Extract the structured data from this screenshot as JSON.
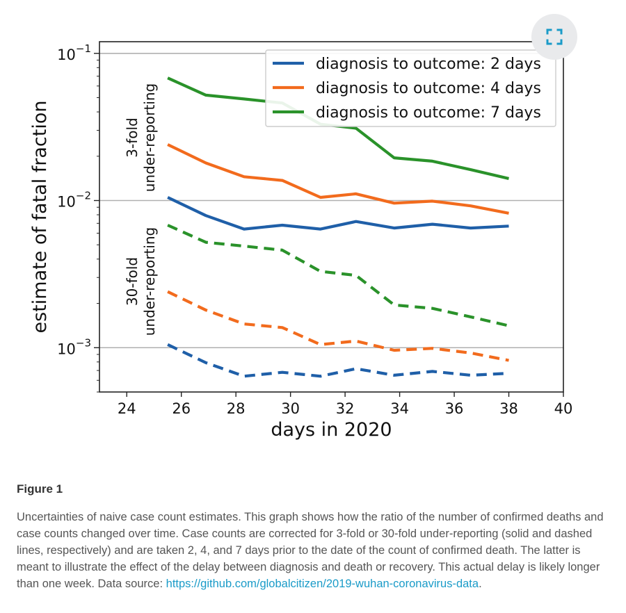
{
  "chart_data": {
    "type": "line",
    "xlabel": "days in 2020",
    "ylabel": "estimate of fatal fraction",
    "xlim": [
      23,
      40
    ],
    "ylim": [
      0.0005,
      0.12
    ],
    "yscale": "log",
    "x_ticks": [
      24,
      26,
      28,
      30,
      32,
      34,
      36,
      38,
      40
    ],
    "y_ticks": [
      {
        "base": "10",
        "exp": "−1",
        "value": 0.1
      },
      {
        "base": "10",
        "exp": "−2",
        "value": 0.01
      },
      {
        "base": "10",
        "exp": "−3",
        "value": 0.001
      }
    ],
    "reference_lines": [
      0.1,
      0.01,
      0.001
    ],
    "annotations": [
      {
        "line1": "3-fold",
        "line2": "under-reporting"
      },
      {
        "line1": "30-fold",
        "line2": "under-reporting"
      }
    ],
    "x": [
      25.5,
      26.9,
      28.3,
      29.7,
      31.1,
      32.4,
      33.8,
      35.2,
      36.6,
      38.0
    ],
    "series": [
      {
        "name": "diagnosis to outcome: 2 days",
        "group": "3-fold",
        "dashed": false,
        "color": "#1f5fa8",
        "values": [
          0.0105,
          0.0079,
          0.0064,
          0.0068,
          0.0064,
          0.0072,
          0.0065,
          0.0069,
          0.0065,
          0.0067
        ]
      },
      {
        "name": "diagnosis to outcome: 4 days",
        "group": "3-fold",
        "dashed": false,
        "color": "#f26b1d",
        "values": [
          0.024,
          0.018,
          0.0145,
          0.0137,
          0.0105,
          0.0111,
          0.0096,
          0.0099,
          0.0092,
          0.0082
        ]
      },
      {
        "name": "diagnosis to outcome: 7 days",
        "group": "3-fold",
        "dashed": false,
        "color": "#2a922a",
        "values": [
          0.068,
          0.052,
          0.049,
          0.046,
          0.033,
          0.031,
          0.0195,
          0.0185,
          0.0162,
          0.0141
        ]
      },
      {
        "name": "",
        "group": "30-fold",
        "dashed": true,
        "color": "#1f5fa8",
        "values": [
          0.00105,
          0.00079,
          0.00064,
          0.00068,
          0.00064,
          0.00072,
          0.00065,
          0.00069,
          0.00065,
          0.00067
        ]
      },
      {
        "name": "",
        "group": "30-fold",
        "dashed": true,
        "color": "#f26b1d",
        "values": [
          0.0024,
          0.0018,
          0.00145,
          0.00137,
          0.00105,
          0.00111,
          0.00096,
          0.00099,
          0.00092,
          0.00082
        ]
      },
      {
        "name": "",
        "group": "30-fold",
        "dashed": true,
        "color": "#2a922a",
        "values": [
          0.0068,
          0.0052,
          0.0049,
          0.0046,
          0.0033,
          0.0031,
          0.00195,
          0.00185,
          0.00162,
          0.00141
        ]
      }
    ],
    "legend": "top-right",
    "grid": false
  },
  "expand_icon": "expand-icon",
  "figure": {
    "title": "Figure 1",
    "caption": "Uncertainties of naive case count estimates. This graph shows how the ratio of the number of confirmed deaths and case counts changed over time. Case counts are corrected for 3-fold or 30-fold under-reporting (solid and dashed lines, respectively) and are taken 2, 4, and 7 days prior to the date of the count of confirmed death. The latter is meant to illustrate the effect of the delay between diagnosis and death or recovery. This actual delay is likely longer than one week. Data source: ",
    "link": "https://github.com/globalcitizen/2019-wuhan-coronavirus-data",
    "trailing": "."
  }
}
